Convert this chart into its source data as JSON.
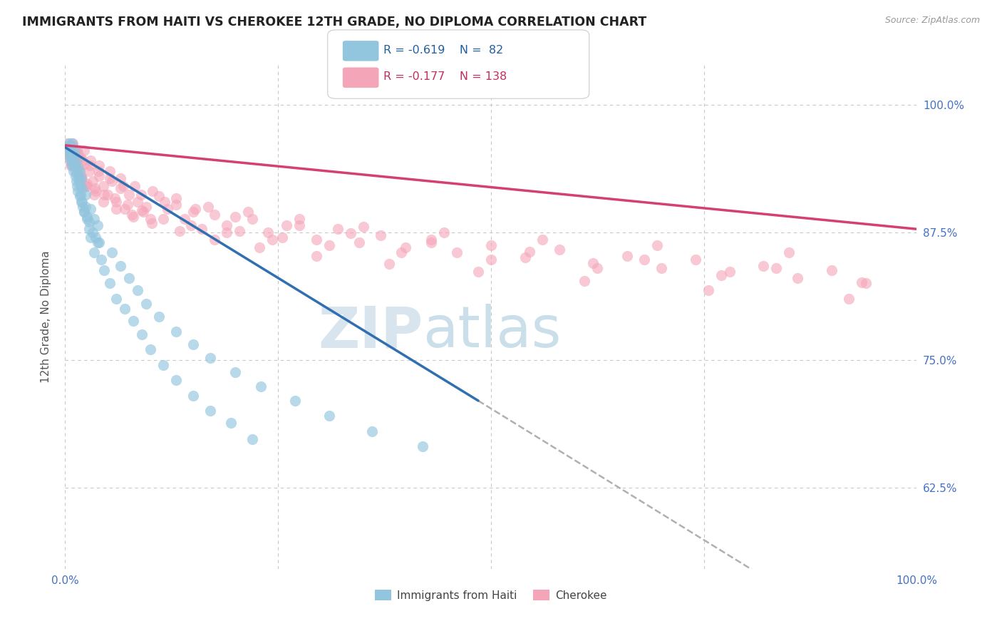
{
  "title": "IMMIGRANTS FROM HAITI VS CHEROKEE 12TH GRADE, NO DIPLOMA CORRELATION CHART",
  "source": "Source: ZipAtlas.com",
  "ylabel": "12th Grade, No Diploma",
  "legend_blue_label": "Immigrants from Haiti",
  "legend_pink_label": "Cherokee",
  "legend_blue_R": "R = -0.619",
  "legend_blue_N": "N =  82",
  "legend_pink_R": "R = -0.177",
  "legend_pink_N": "N = 138",
  "blue_color": "#92c5de",
  "pink_color": "#f4a5b8",
  "blue_line_color": "#3070b0",
  "pink_line_color": "#d44070",
  "dashed_line_color": "#b0b0b0",
  "watermark_zip": "ZIP",
  "watermark_atlas": "atlas",
  "ytick_labels": [
    "62.5%",
    "75.0%",
    "87.5%",
    "100.0%"
  ],
  "ytick_values": [
    0.625,
    0.75,
    0.875,
    1.0
  ],
  "xmin": 0.0,
  "xmax": 1.0,
  "ymin": 0.545,
  "ymax": 1.04,
  "blue_trendline_x": [
    0.0,
    0.485
  ],
  "blue_trendline_y": [
    0.958,
    0.71
  ],
  "pink_trendline_x": [
    0.0,
    1.0
  ],
  "pink_trendline_y": [
    0.96,
    0.878
  ],
  "dashed_line_x": [
    0.485,
    1.0
  ],
  "dashed_line_y": [
    0.71,
    0.445
  ],
  "blue_scatter_x": [
    0.002,
    0.003,
    0.004,
    0.005,
    0.006,
    0.007,
    0.008,
    0.009,
    0.01,
    0.011,
    0.012,
    0.013,
    0.014,
    0.015,
    0.016,
    0.017,
    0.018,
    0.019,
    0.02,
    0.021,
    0.022,
    0.024,
    0.026,
    0.028,
    0.03,
    0.032,
    0.034,
    0.036,
    0.038,
    0.04,
    0.005,
    0.006,
    0.007,
    0.008,
    0.009,
    0.01,
    0.011,
    0.012,
    0.013,
    0.014,
    0.015,
    0.016,
    0.017,
    0.018,
    0.019,
    0.02,
    0.022,
    0.024,
    0.026,
    0.028,
    0.03,
    0.034,
    0.038,
    0.042,
    0.046,
    0.052,
    0.06,
    0.07,
    0.08,
    0.09,
    0.1,
    0.115,
    0.13,
    0.15,
    0.17,
    0.195,
    0.22,
    0.055,
    0.065,
    0.075,
    0.085,
    0.095,
    0.11,
    0.13,
    0.15,
    0.17,
    0.2,
    0.23,
    0.27,
    0.31,
    0.36,
    0.42
  ],
  "blue_scatter_y": [
    0.958,
    0.955,
    0.95,
    0.962,
    0.945,
    0.952,
    0.94,
    0.948,
    0.935,
    0.942,
    0.93,
    0.925,
    0.92,
    0.915,
    0.928,
    0.91,
    0.92,
    0.905,
    0.918,
    0.9,
    0.895,
    0.912,
    0.89,
    0.885,
    0.898,
    0.875,
    0.888,
    0.87,
    0.882,
    0.865,
    0.96,
    0.958,
    0.948,
    0.962,
    0.952,
    0.94,
    0.955,
    0.938,
    0.945,
    0.932,
    0.938,
    0.925,
    0.935,
    0.912,
    0.928,
    0.905,
    0.895,
    0.9,
    0.888,
    0.878,
    0.87,
    0.855,
    0.865,
    0.848,
    0.838,
    0.825,
    0.81,
    0.8,
    0.788,
    0.775,
    0.76,
    0.745,
    0.73,
    0.715,
    0.7,
    0.688,
    0.672,
    0.855,
    0.842,
    0.83,
    0.818,
    0.805,
    0.792,
    0.778,
    0.765,
    0.752,
    0.738,
    0.724,
    0.71,
    0.695,
    0.68,
    0.665
  ],
  "pink_scatter_x": [
    0.002,
    0.004,
    0.006,
    0.008,
    0.01,
    0.012,
    0.014,
    0.016,
    0.018,
    0.02,
    0.022,
    0.025,
    0.028,
    0.032,
    0.036,
    0.04,
    0.045,
    0.05,
    0.055,
    0.06,
    0.065,
    0.07,
    0.075,
    0.08,
    0.085,
    0.09,
    0.095,
    0.1,
    0.11,
    0.12,
    0.13,
    0.14,
    0.15,
    0.16,
    0.175,
    0.19,
    0.205,
    0.22,
    0.238,
    0.255,
    0.275,
    0.295,
    0.32,
    0.345,
    0.37,
    0.4,
    0.43,
    0.46,
    0.5,
    0.54,
    0.58,
    0.62,
    0.66,
    0.7,
    0.74,
    0.78,
    0.82,
    0.86,
    0.9,
    0.94,
    0.003,
    0.005,
    0.007,
    0.009,
    0.011,
    0.013,
    0.016,
    0.019,
    0.022,
    0.026,
    0.03,
    0.035,
    0.04,
    0.046,
    0.052,
    0.058,
    0.065,
    0.073,
    0.082,
    0.092,
    0.103,
    0.115,
    0.13,
    0.148,
    0.168,
    0.19,
    0.215,
    0.243,
    0.275,
    0.31,
    0.35,
    0.395,
    0.445,
    0.5,
    0.56,
    0.625,
    0.695,
    0.77,
    0.85,
    0.935,
    0.002,
    0.004,
    0.006,
    0.008,
    0.01,
    0.012,
    0.015,
    0.018,
    0.021,
    0.025,
    0.029,
    0.034,
    0.039,
    0.045,
    0.052,
    0.06,
    0.068,
    0.078,
    0.089,
    0.102,
    0.117,
    0.134,
    0.153,
    0.175,
    0.2,
    0.228,
    0.26,
    0.295,
    0.335,
    0.38,
    0.43,
    0.485,
    0.545,
    0.61,
    0.68,
    0.755,
    0.835,
    0.92
  ],
  "pink_scatter_y": [
    0.956,
    0.948,
    0.94,
    0.96,
    0.95,
    0.942,
    0.955,
    0.935,
    0.948,
    0.928,
    0.942,
    0.92,
    0.935,
    0.925,
    0.915,
    0.93,
    0.92,
    0.912,
    0.925,
    0.905,
    0.918,
    0.898,
    0.912,
    0.89,
    0.905,
    0.896,
    0.9,
    0.888,
    0.91,
    0.898,
    0.902,
    0.888,
    0.895,
    0.878,
    0.892,
    0.882,
    0.876,
    0.888,
    0.875,
    0.87,
    0.882,
    0.868,
    0.878,
    0.865,
    0.872,
    0.86,
    0.868,
    0.855,
    0.862,
    0.85,
    0.858,
    0.845,
    0.852,
    0.84,
    0.848,
    0.836,
    0.842,
    0.83,
    0.838,
    0.825,
    0.958,
    0.95,
    0.942,
    0.962,
    0.95,
    0.945,
    0.938,
    0.93,
    0.955,
    0.922,
    0.945,
    0.918,
    0.94,
    0.912,
    0.935,
    0.908,
    0.928,
    0.902,
    0.92,
    0.895,
    0.915,
    0.888,
    0.908,
    0.882,
    0.9,
    0.875,
    0.895,
    0.868,
    0.888,
    0.862,
    0.88,
    0.855,
    0.875,
    0.848,
    0.868,
    0.84,
    0.862,
    0.833,
    0.855,
    0.826,
    0.962,
    0.955,
    0.948,
    0.942,
    0.958,
    0.935,
    0.952,
    0.928,
    0.945,
    0.92,
    0.94,
    0.912,
    0.935,
    0.905,
    0.928,
    0.898,
    0.92,
    0.892,
    0.912,
    0.884,
    0.905,
    0.876,
    0.898,
    0.868,
    0.89,
    0.86,
    0.882,
    0.852,
    0.874,
    0.844,
    0.865,
    0.836,
    0.856,
    0.827,
    0.848,
    0.818,
    0.84,
    0.81
  ]
}
